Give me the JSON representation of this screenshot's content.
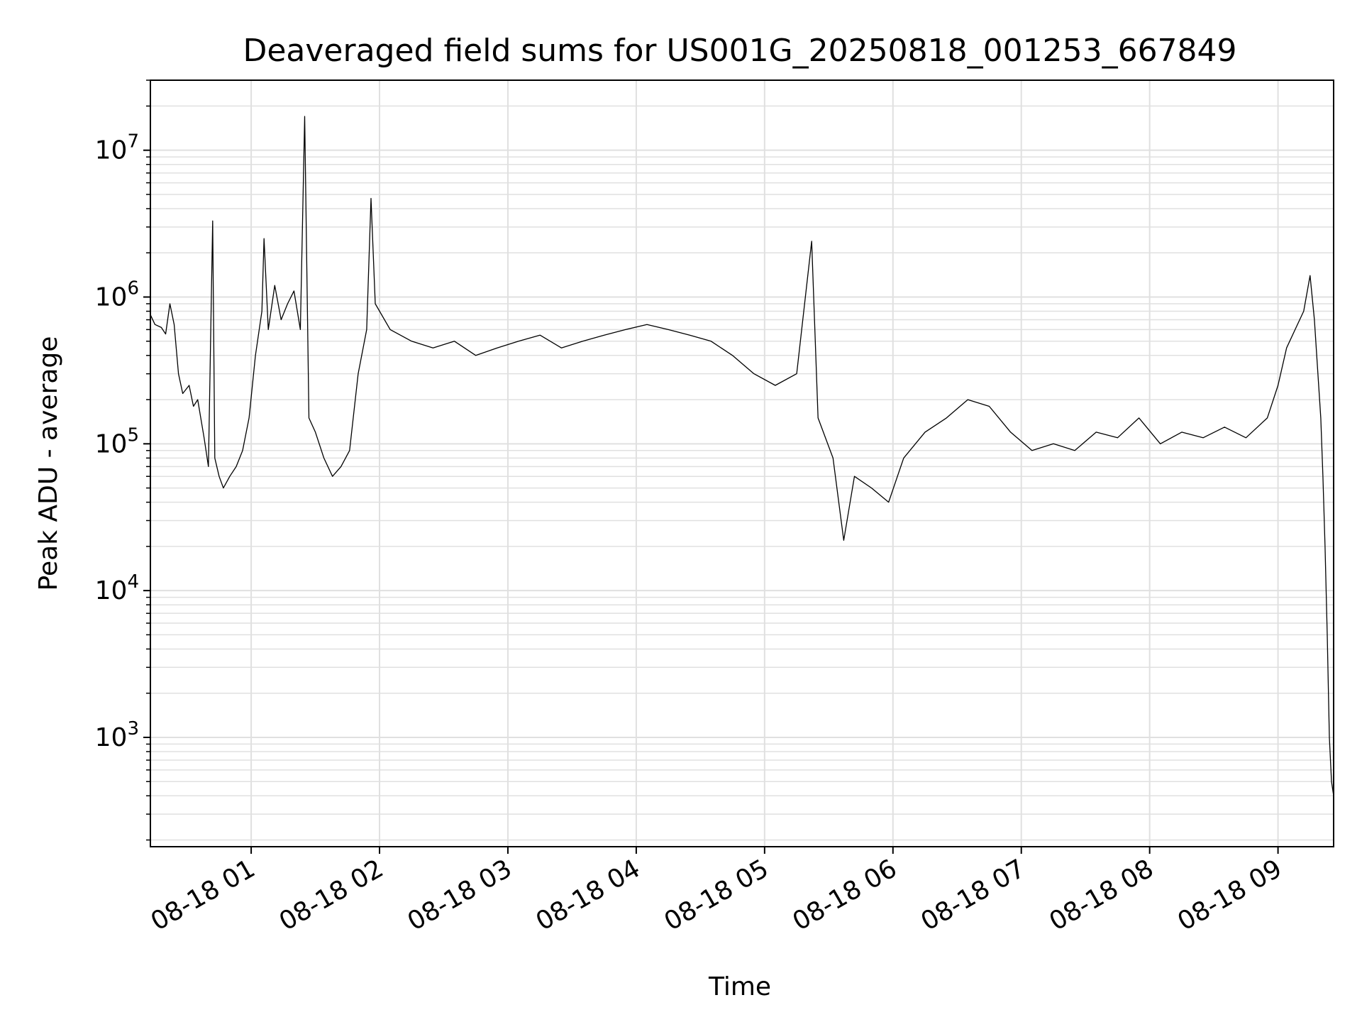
{
  "chart_data": {
    "type": "line",
    "title": "Deaveraged field sums for US001G_20250818_001253_667849",
    "xlabel": "Time",
    "ylabel": "Peak ADU - average",
    "yscale": "log",
    "grid": true,
    "legend": "none",
    "line_color": "#000000",
    "grid_color": "#e0e0e0",
    "xlim": [
      "2025-08-18 00:12:53",
      "2025-08-18 09:26"
    ],
    "ylim": [
      180,
      30000000
    ],
    "x_ticks": [
      {
        "value": "2025-08-18 01:00",
        "label": "08-18 01"
      },
      {
        "value": "2025-08-18 02:00",
        "label": "08-18 02"
      },
      {
        "value": "2025-08-18 03:00",
        "label": "08-18 03"
      },
      {
        "value": "2025-08-18 04:00",
        "label": "08-18 04"
      },
      {
        "value": "2025-08-18 05:00",
        "label": "08-18 05"
      },
      {
        "value": "2025-08-18 06:00",
        "label": "08-18 06"
      },
      {
        "value": "2025-08-18 07:00",
        "label": "08-18 07"
      },
      {
        "value": "2025-08-18 08:00",
        "label": "08-18 08"
      },
      {
        "value": "2025-08-18 09:00",
        "label": "08-18 09"
      }
    ],
    "y_ticks": [
      {
        "value": 1000,
        "base": "10",
        "exp": "3"
      },
      {
        "value": 10000,
        "base": "10",
        "exp": "4"
      },
      {
        "value": 100000,
        "base": "10",
        "exp": "5"
      },
      {
        "value": 1000000,
        "base": "10",
        "exp": "6"
      },
      {
        "value": 10000000,
        "base": "10",
        "exp": "7"
      }
    ],
    "series": [
      {
        "values": [
          [
            "2025-08-18 00:13",
            750000
          ],
          [
            "2025-08-18 00:15",
            650000
          ],
          [
            "2025-08-18 00:18",
            620000
          ],
          [
            "2025-08-18 00:20",
            560000
          ],
          [
            "2025-08-18 00:22",
            900000
          ],
          [
            "2025-08-18 00:24",
            650000
          ],
          [
            "2025-08-18 00:26",
            300000
          ],
          [
            "2025-08-18 00:28",
            220000
          ],
          [
            "2025-08-18 00:31",
            250000
          ],
          [
            "2025-08-18 00:33",
            180000
          ],
          [
            "2025-08-18 00:35",
            200000
          ],
          [
            "2025-08-18 00:38",
            110000
          ],
          [
            "2025-08-18 00:40",
            70000
          ],
          [
            "2025-08-18 00:42",
            3300000
          ],
          [
            "2025-08-18 00:43",
            80000
          ],
          [
            "2025-08-18 00:45",
            60000
          ],
          [
            "2025-08-18 00:47",
            50000
          ],
          [
            "2025-08-18 00:50",
            60000
          ],
          [
            "2025-08-18 00:53",
            70000
          ],
          [
            "2025-08-18 00:56",
            90000
          ],
          [
            "2025-08-18 00:59",
            150000
          ],
          [
            "2025-08-18 01:02",
            400000
          ],
          [
            "2025-08-18 01:05",
            800000
          ],
          [
            "2025-08-18 01:06",
            2500000
          ],
          [
            "2025-08-18 01:08",
            600000
          ],
          [
            "2025-08-18 01:11",
            1200000
          ],
          [
            "2025-08-18 01:14",
            700000
          ],
          [
            "2025-08-18 01:17",
            900000
          ],
          [
            "2025-08-18 01:20",
            1100000
          ],
          [
            "2025-08-18 01:23",
            600000
          ],
          [
            "2025-08-18 01:25",
            17000000
          ],
          [
            "2025-08-18 01:27",
            150000
          ],
          [
            "2025-08-18 01:30",
            120000
          ],
          [
            "2025-08-18 01:34",
            80000
          ],
          [
            "2025-08-18 01:38",
            60000
          ],
          [
            "2025-08-18 01:42",
            70000
          ],
          [
            "2025-08-18 01:46",
            90000
          ],
          [
            "2025-08-18 01:50",
            300000
          ],
          [
            "2025-08-18 01:54",
            600000
          ],
          [
            "2025-08-18 01:56",
            4700000
          ],
          [
            "2025-08-18 01:58",
            900000
          ],
          [
            "2025-08-18 02:05",
            600000
          ],
          [
            "2025-08-18 02:15",
            500000
          ],
          [
            "2025-08-18 02:25",
            450000
          ],
          [
            "2025-08-18 02:35",
            500000
          ],
          [
            "2025-08-18 02:45",
            400000
          ],
          [
            "2025-08-18 02:55",
            450000
          ],
          [
            "2025-08-18 03:05",
            500000
          ],
          [
            "2025-08-18 03:15",
            550000
          ],
          [
            "2025-08-18 03:25",
            450000
          ],
          [
            "2025-08-18 03:35",
            500000
          ],
          [
            "2025-08-18 03:45",
            550000
          ],
          [
            "2025-08-18 03:55",
            600000
          ],
          [
            "2025-08-18 04:05",
            650000
          ],
          [
            "2025-08-18 04:15",
            600000
          ],
          [
            "2025-08-18 04:25",
            550000
          ],
          [
            "2025-08-18 04:35",
            500000
          ],
          [
            "2025-08-18 04:45",
            400000
          ],
          [
            "2025-08-18 04:55",
            300000
          ],
          [
            "2025-08-18 05:05",
            250000
          ],
          [
            "2025-08-18 05:15",
            300000
          ],
          [
            "2025-08-18 05:22",
            2400000
          ],
          [
            "2025-08-18 05:25",
            150000
          ],
          [
            "2025-08-18 05:32",
            80000
          ],
          [
            "2025-08-18 05:37",
            22000
          ],
          [
            "2025-08-18 05:42",
            60000
          ],
          [
            "2025-08-18 05:50",
            50000
          ],
          [
            "2025-08-18 05:58",
            40000
          ],
          [
            "2025-08-18 06:05",
            80000
          ],
          [
            "2025-08-18 06:15",
            120000
          ],
          [
            "2025-08-18 06:25",
            150000
          ],
          [
            "2025-08-18 06:35",
            200000
          ],
          [
            "2025-08-18 06:45",
            180000
          ],
          [
            "2025-08-18 06:55",
            120000
          ],
          [
            "2025-08-18 07:05",
            90000
          ],
          [
            "2025-08-18 07:15",
            100000
          ],
          [
            "2025-08-18 07:25",
            90000
          ],
          [
            "2025-08-18 07:35",
            120000
          ],
          [
            "2025-08-18 07:45",
            110000
          ],
          [
            "2025-08-18 07:55",
            150000
          ],
          [
            "2025-08-18 08:05",
            100000
          ],
          [
            "2025-08-18 08:15",
            120000
          ],
          [
            "2025-08-18 08:25",
            110000
          ],
          [
            "2025-08-18 08:35",
            130000
          ],
          [
            "2025-08-18 08:45",
            110000
          ],
          [
            "2025-08-18 08:55",
            150000
          ],
          [
            "2025-08-18 09:00",
            250000
          ],
          [
            "2025-08-18 09:04",
            450000
          ],
          [
            "2025-08-18 09:08",
            600000
          ],
          [
            "2025-08-18 09:12",
            800000
          ],
          [
            "2025-08-18 09:15",
            1400000
          ],
          [
            "2025-08-18 09:17",
            700000
          ],
          [
            "2025-08-18 09:20",
            150000
          ],
          [
            "2025-08-18 09:21",
            60000
          ],
          [
            "2025-08-18 09:22",
            20000
          ],
          [
            "2025-08-18 09:23",
            5000
          ],
          [
            "2025-08-18 09:24",
            1000
          ],
          [
            "2025-08-18 09:25",
            500
          ],
          [
            "2025-08-18 09:26",
            400
          ]
        ]
      }
    ]
  }
}
